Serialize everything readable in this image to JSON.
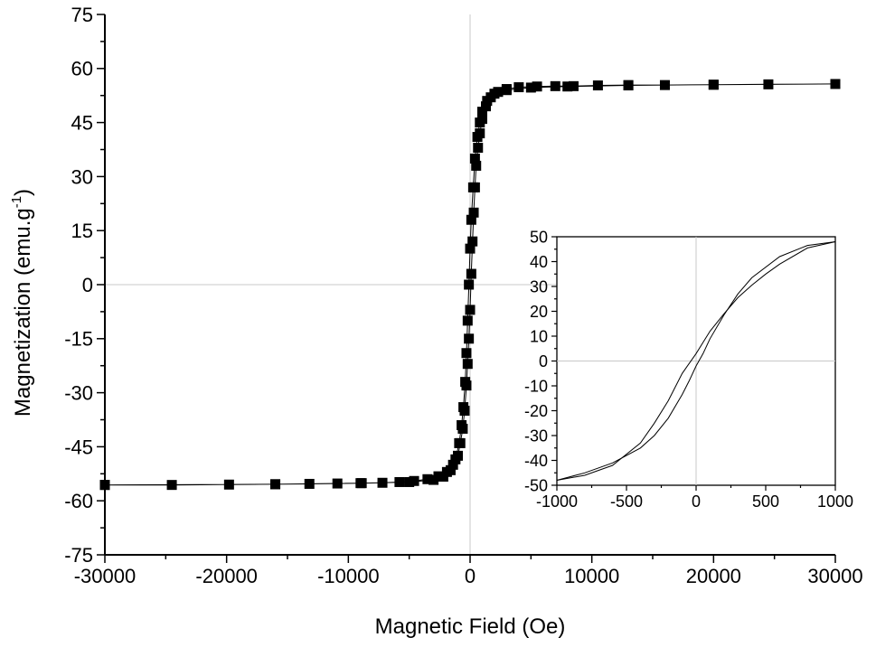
{
  "chart_data": [
    {
      "type": "scatter",
      "role": "main",
      "xlabel": "Magnetic Field (Oe)",
      "ylabel_main": "Magnetization (emu.g",
      "ylabel_sup": "-1",
      "ylabel_close": ")",
      "xlim": [
        -30000,
        30000
      ],
      "ylim": [
        -75,
        75
      ],
      "xticks": [
        -30000,
        -20000,
        -10000,
        0,
        10000,
        20000,
        30000
      ],
      "xtick_labels": [
        "-30000",
        "-20000",
        "-10000",
        "0",
        "10000",
        "20000",
        "30000"
      ],
      "yticks": [
        -75,
        -60,
        -45,
        -30,
        -15,
        0,
        15,
        30,
        45,
        60,
        75
      ],
      "ytick_labels": [
        "-75",
        "-60",
        "-45",
        "-30",
        "-15",
        "0",
        "15",
        "30",
        "45",
        "60",
        "75"
      ],
      "reference_lines": {
        "x": 0,
        "y": 0
      },
      "marker": "square",
      "series": [
        {
          "points": [
            [
              -30000,
              -55.6
            ],
            [
              -24500,
              -55.6
            ],
            [
              -19800,
              -55.5
            ],
            [
              -16000,
              -55.4
            ],
            [
              -13200,
              -55.3
            ],
            [
              -10900,
              -55.2
            ],
            [
              -8900,
              -55.1
            ],
            [
              -7200,
              -55.0
            ],
            [
              -5800,
              -54.8
            ],
            [
              -4600,
              -54.5
            ],
            [
              -3500,
              -54.0
            ],
            [
              -2600,
              -53.2
            ],
            [
              -1900,
              -52.0
            ],
            [
              -1400,
              -50.0
            ],
            [
              -1000,
              -47.5
            ],
            [
              -800,
              -44.0
            ],
            [
              -600,
              -40.0
            ],
            [
              -450,
              -35.0
            ],
            [
              -300,
              -28.0
            ],
            [
              -200,
              -22.0
            ],
            [
              -100,
              -15.0
            ],
            [
              0,
              -7.0
            ],
            [
              100,
              3.0
            ],
            [
              200,
              12.0
            ],
            [
              300,
              20.0
            ],
            [
              400,
              27.0
            ],
            [
              500,
              33.0
            ],
            [
              650,
              38.0
            ],
            [
              800,
              42.0
            ],
            [
              1000,
              46.0
            ],
            [
              1300,
              49.5
            ],
            [
              1700,
              52.0
            ],
            [
              2300,
              53.5
            ],
            [
              3000,
              54.3
            ],
            [
              4000,
              54.8
            ],
            [
              5500,
              55.0
            ],
            [
              7000,
              55.1
            ],
            [
              8500,
              55.1
            ],
            [
              10500,
              55.3
            ],
            [
              13000,
              55.4
            ],
            [
              16000,
              55.4
            ],
            [
              20000,
              55.5
            ],
            [
              24500,
              55.6
            ],
            [
              30000,
              55.7
            ],
            [
              20000,
              55.5
            ],
            [
              13000,
              55.3
            ],
            [
              8000,
              55.0
            ],
            [
              5000,
              54.7
            ],
            [
              3000,
              54.0
            ],
            [
              2000,
              53.0
            ],
            [
              1400,
              51.0
            ],
            [
              1000,
              48.0
            ],
            [
              800,
              45.0
            ],
            [
              600,
              41.0
            ],
            [
              400,
              35.0
            ],
            [
              250,
              27.0
            ],
            [
              100,
              18.0
            ],
            [
              0,
              10.0
            ],
            [
              -100,
              0.0
            ],
            [
              -200,
              -10.0
            ],
            [
              -300,
              -19.0
            ],
            [
              -400,
              -27.0
            ],
            [
              -550,
              -34.0
            ],
            [
              -700,
              -39.0
            ],
            [
              -900,
              -44.0
            ],
            [
              -1200,
              -48.5
            ],
            [
              -1600,
              -51.5
            ],
            [
              -2200,
              -53.3
            ],
            [
              -3000,
              -54.2
            ],
            [
              -5000,
              -54.8
            ],
            [
              -9000,
              -55.1
            ],
            [
              -16000,
              -55.4
            ],
            [
              -30000,
              -55.6
            ]
          ]
        }
      ]
    },
    {
      "type": "line",
      "role": "inset",
      "xlim": [
        -1000,
        1000
      ],
      "ylim": [
        -50,
        50
      ],
      "xticks": [
        -1000,
        -500,
        0,
        500,
        1000
      ],
      "xtick_labels": [
        "-1000",
        "-500",
        "0",
        "500",
        "1000"
      ],
      "yticks": [
        -50,
        -40,
        -30,
        -20,
        -10,
        0,
        10,
        20,
        30,
        40,
        50
      ],
      "ytick_labels": [
        "-50",
        "-40",
        "-30",
        "-20",
        "-10",
        "0",
        "10",
        "20",
        "30",
        "40",
        "50"
      ],
      "reference_lines": {
        "x": 0,
        "y": 0
      },
      "series": [
        {
          "name": "",
          "points": [
            [
              1000,
              48
            ],
            [
              800,
              46.5
            ],
            [
              600,
              42
            ],
            [
              400,
              33.5
            ],
            [
              300,
              27
            ],
            [
              200,
              18.5
            ],
            [
              100,
              9
            ],
            [
              50,
              3
            ],
            [
              0,
              -2
            ],
            [
              -50,
              -8
            ],
            [
              -100,
              -13.5
            ],
            [
              -200,
              -23
            ],
            [
              -300,
              -30
            ],
            [
              -400,
              -35
            ],
            [
              -600,
              -41
            ],
            [
              -800,
              -45
            ],
            [
              -1000,
              -48
            ]
          ]
        },
        {
          "name": "",
          "points": [
            [
              -1000,
              -48
            ],
            [
              -800,
              -46
            ],
            [
              -600,
              -42
            ],
            [
              -400,
              -33
            ],
            [
              -300,
              -25
            ],
            [
              -200,
              -16
            ],
            [
              -100,
              -5
            ],
            [
              0,
              3
            ],
            [
              50,
              7.5
            ],
            [
              100,
              12
            ],
            [
              200,
              19
            ],
            [
              300,
              25.5
            ],
            [
              400,
              30.5
            ],
            [
              500,
              35
            ],
            [
              600,
              39
            ],
            [
              800,
              45.5
            ],
            [
              1000,
              48
            ]
          ]
        }
      ]
    }
  ]
}
